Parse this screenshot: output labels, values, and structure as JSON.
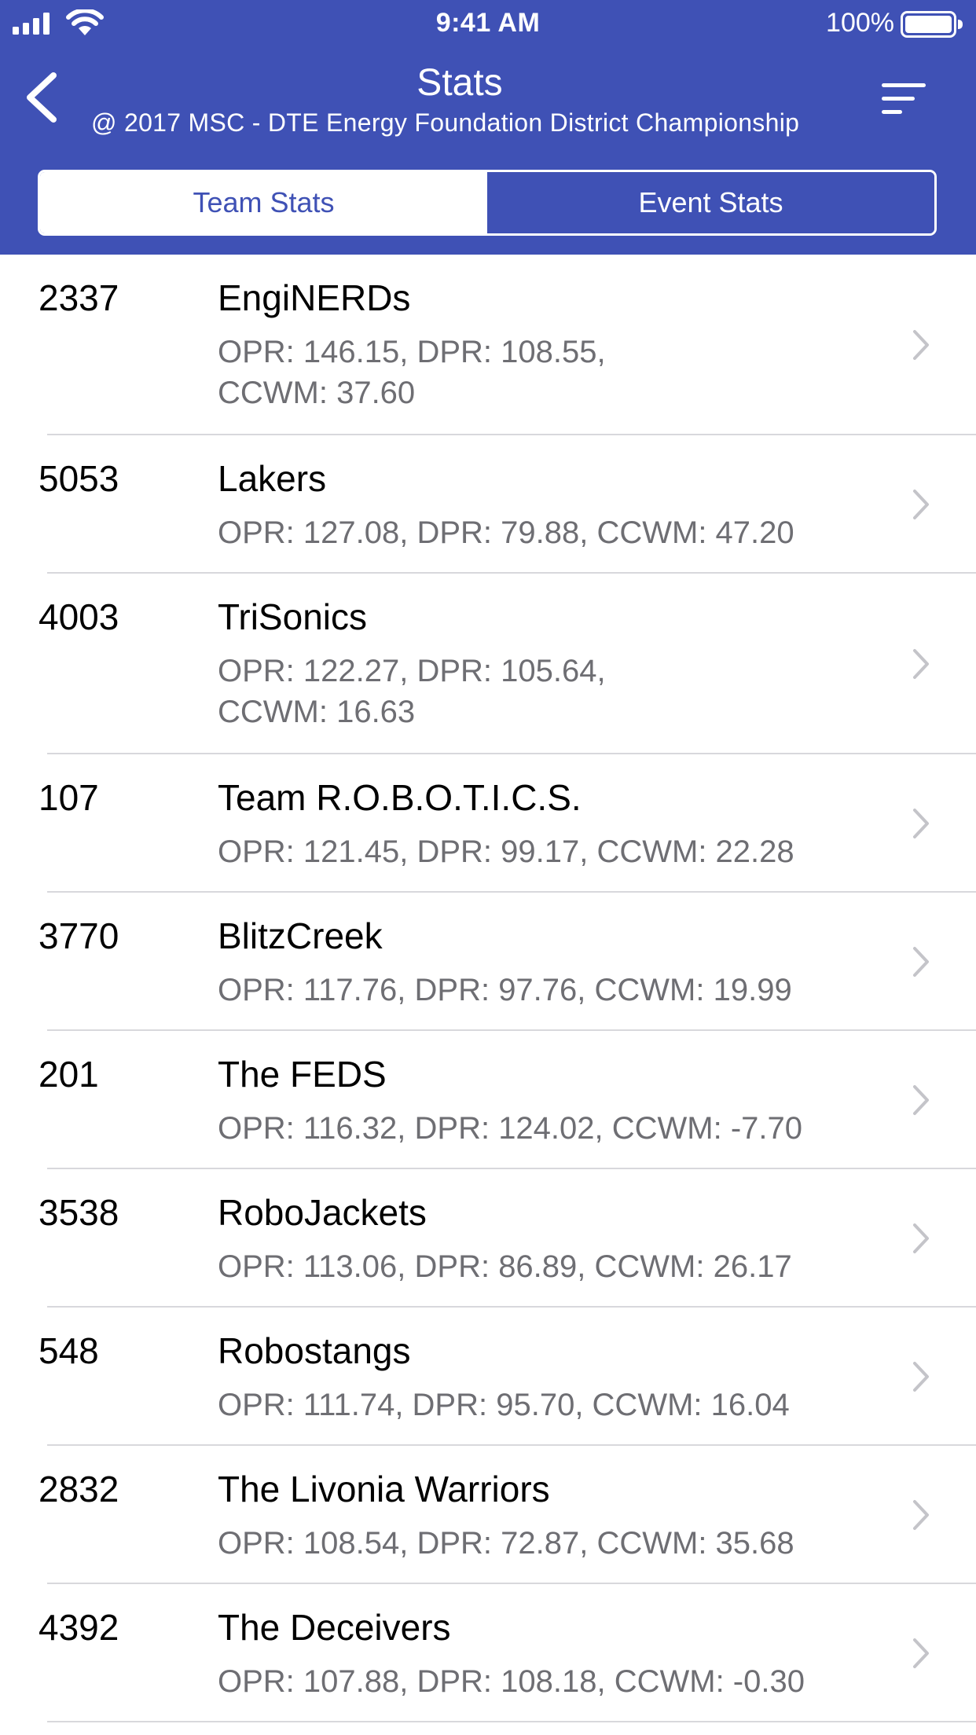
{
  "status_bar": {
    "time": "9:41 AM",
    "battery_percent": "100%",
    "battery_level": 1.0
  },
  "nav": {
    "title": "Stats",
    "subtitle": "@ 2017 MSC - DTE Energy Foundation District Championship",
    "back_icon": "chevron-left-icon",
    "sort_icon": "sort-icon"
  },
  "tabs": [
    {
      "label": "Team Stats",
      "selected": true
    },
    {
      "label": "Event Stats",
      "selected": false
    }
  ],
  "colors": {
    "primary": "#3f51b5",
    "secondary_text": "#6e6e73",
    "separator": "#d8d8dc"
  },
  "teams": [
    {
      "number": "2337",
      "name": "EngiNERDs",
      "stats": "OPR: 146.15, DPR: 108.55, CCWM: 37.60"
    },
    {
      "number": "5053",
      "name": "Lakers",
      "stats": "OPR: 127.08, DPR: 79.88, CCWM: 47.20"
    },
    {
      "number": "4003",
      "name": "TriSonics",
      "stats": "OPR: 122.27, DPR: 105.64, CCWM: 16.63"
    },
    {
      "number": "107",
      "name": "Team R.O.B.O.T.I.C.S.",
      "stats": "OPR: 121.45, DPR: 99.17, CCWM: 22.28"
    },
    {
      "number": "3770",
      "name": "BlitzCreek",
      "stats": "OPR: 117.76, DPR: 97.76, CCWM: 19.99"
    },
    {
      "number": "201",
      "name": "The FEDS",
      "stats": "OPR: 116.32, DPR: 124.02, CCWM: -7.70"
    },
    {
      "number": "3538",
      "name": "RoboJackets",
      "stats": "OPR: 113.06, DPR: 86.89, CCWM: 26.17"
    },
    {
      "number": "548",
      "name": "Robostangs",
      "stats": "OPR: 111.74, DPR: 95.70, CCWM: 16.04"
    },
    {
      "number": "2832",
      "name": "The Livonia  Warriors",
      "stats": "OPR: 108.54, DPR: 72.87, CCWM: 35.68"
    },
    {
      "number": "4392",
      "name": "The Deceivers",
      "stats": "OPR: 107.88, DPR: 108.18, CCWM: -0.30"
    }
  ]
}
